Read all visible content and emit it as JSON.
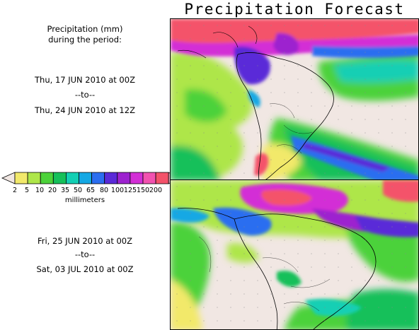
{
  "title": "Precipitation Forecast",
  "description": {
    "line1": "Precipitation (mm)",
    "line2": "during the period:"
  },
  "period1": {
    "start": "Thu, 17 JUN 2010 at 00Z",
    "to": "--to--",
    "end": "Thu, 24 JUN 2010 at 12Z"
  },
  "period2": {
    "start": "Fri, 25 JUN 2010 at 00Z",
    "to": "--to--",
    "end": "Sat, 03 JUL 2010 at 00Z"
  },
  "legend": {
    "units": "millimeters",
    "labels": [
      "2",
      "5",
      "10",
      "20",
      "35",
      "50",
      "65",
      "80",
      "100",
      "125",
      "150",
      "200"
    ],
    "colors": [
      "#f2e96b",
      "#aee64a",
      "#4cd23a",
      "#15c05a",
      "#12cfb4",
      "#14a8e4",
      "#2b6ef0",
      "#5a2ad8",
      "#9d22cf",
      "#d32fd6",
      "#f252b0",
      "#f4526a"
    ],
    "under_color": "#f1e7e3",
    "over_color": "#f6b2c6"
  }
}
